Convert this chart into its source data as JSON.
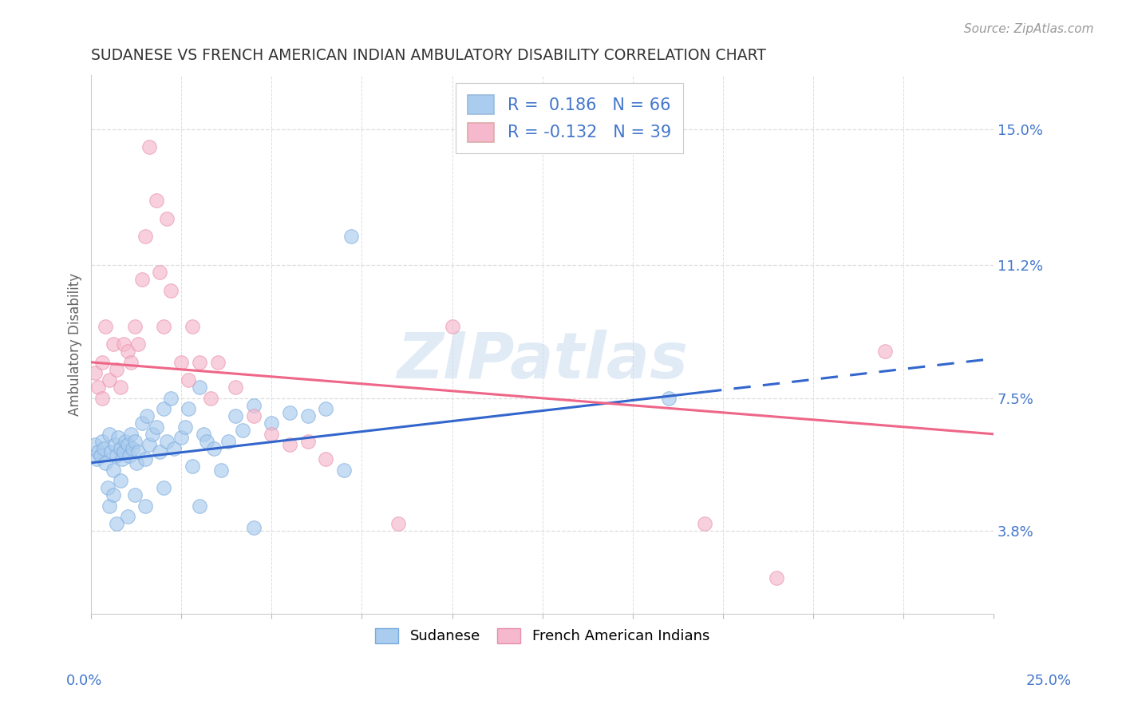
{
  "title": "SUDANESE VS FRENCH AMERICAN INDIAN AMBULATORY DISABILITY CORRELATION CHART",
  "source": "Source: ZipAtlas.com",
  "ylabel": "Ambulatory Disability",
  "xlim": [
    0.0,
    25.0
  ],
  "ylim": [
    1.5,
    16.5
  ],
  "yticks": [
    3.8,
    7.5,
    11.2,
    15.0
  ],
  "ytick_labels": [
    "3.8%",
    "7.5%",
    "11.2%",
    "15.0%"
  ],
  "blue_color": "#AACCEE",
  "blue_edge": "#7AAADE",
  "pink_color": "#F5B8CC",
  "pink_edge": "#E890AA",
  "blue_R": "0.186",
  "blue_N": "66",
  "pink_R": "-0.132",
  "pink_N": "39",
  "legend_label_blue": "Sudanese",
  "legend_label_pink": "French American Indians",
  "blue_scatter_x": [
    0.1,
    0.15,
    0.2,
    0.25,
    0.3,
    0.35,
    0.4,
    0.5,
    0.55,
    0.6,
    0.65,
    0.7,
    0.75,
    0.8,
    0.85,
    0.9,
    0.95,
    1.0,
    1.05,
    1.1,
    1.15,
    1.2,
    1.25,
    1.3,
    1.4,
    1.5,
    1.55,
    1.6,
    1.7,
    1.8,
    1.9,
    2.0,
    2.1,
    2.2,
    2.3,
    2.5,
    2.6,
    2.7,
    2.8,
    3.0,
    3.1,
    3.2,
    3.4,
    3.6,
    3.8,
    4.0,
    4.2,
    4.5,
    5.0,
    5.5,
    6.0,
    6.5,
    7.0,
    7.2,
    0.45,
    0.5,
    0.6,
    0.7,
    0.8,
    1.0,
    1.2,
    1.5,
    2.0,
    3.0,
    4.5,
    16.0
  ],
  "blue_scatter_y": [
    6.2,
    5.8,
    6.0,
    5.9,
    6.3,
    6.1,
    5.7,
    6.5,
    6.0,
    5.5,
    6.2,
    5.9,
    6.4,
    6.1,
    5.8,
    6.0,
    6.3,
    6.2,
    5.9,
    6.5,
    6.1,
    6.3,
    5.7,
    6.0,
    6.8,
    5.8,
    7.0,
    6.2,
    6.5,
    6.7,
    6.0,
    7.2,
    6.3,
    7.5,
    6.1,
    6.4,
    6.7,
    7.2,
    5.6,
    7.8,
    6.5,
    6.3,
    6.1,
    5.5,
    6.3,
    7.0,
    6.6,
    7.3,
    6.8,
    7.1,
    7.0,
    7.2,
    5.5,
    12.0,
    5.0,
    4.5,
    4.8,
    4.0,
    5.2,
    4.2,
    4.8,
    4.5,
    5.0,
    4.5,
    3.9,
    7.5
  ],
  "pink_scatter_x": [
    0.1,
    0.2,
    0.3,
    0.4,
    0.5,
    0.6,
    0.7,
    0.8,
    0.9,
    1.0,
    1.1,
    1.2,
    1.3,
    1.4,
    1.5,
    1.6,
    1.8,
    1.9,
    2.0,
    2.1,
    2.2,
    2.5,
    2.7,
    2.8,
    3.0,
    3.3,
    3.5,
    4.0,
    4.5,
    5.0,
    5.5,
    6.0,
    6.5,
    8.5,
    10.0,
    17.0,
    19.0,
    22.0,
    0.3
  ],
  "pink_scatter_y": [
    8.2,
    7.8,
    8.5,
    9.5,
    8.0,
    9.0,
    8.3,
    7.8,
    9.0,
    8.8,
    8.5,
    9.5,
    9.0,
    10.8,
    12.0,
    14.5,
    13.0,
    11.0,
    9.5,
    12.5,
    10.5,
    8.5,
    8.0,
    9.5,
    8.5,
    7.5,
    8.5,
    7.8,
    7.0,
    6.5,
    6.2,
    6.3,
    5.8,
    4.0,
    9.5,
    4.0,
    2.5,
    8.8,
    7.5
  ],
  "blue_line_x0": 0.0,
  "blue_line_x1": 25.0,
  "blue_line_y0": 5.7,
  "blue_line_y1": 8.6,
  "blue_dash_from_x": 17.0,
  "pink_line_x0": 0.0,
  "pink_line_x1": 25.0,
  "pink_line_y0": 8.5,
  "pink_line_y1": 6.5,
  "line_blue_color": "#3366CC",
  "line_pink_color": "#EE6688",
  "background_color": "#FFFFFF",
  "grid_color": "#DDDDDD",
  "title_color": "#333333",
  "tick_color": "#4477CC",
  "legend_text_color": "#4477CC",
  "watermark_color": "#C8DCF0",
  "marker_size": 160,
  "marker_alpha": 0.65
}
